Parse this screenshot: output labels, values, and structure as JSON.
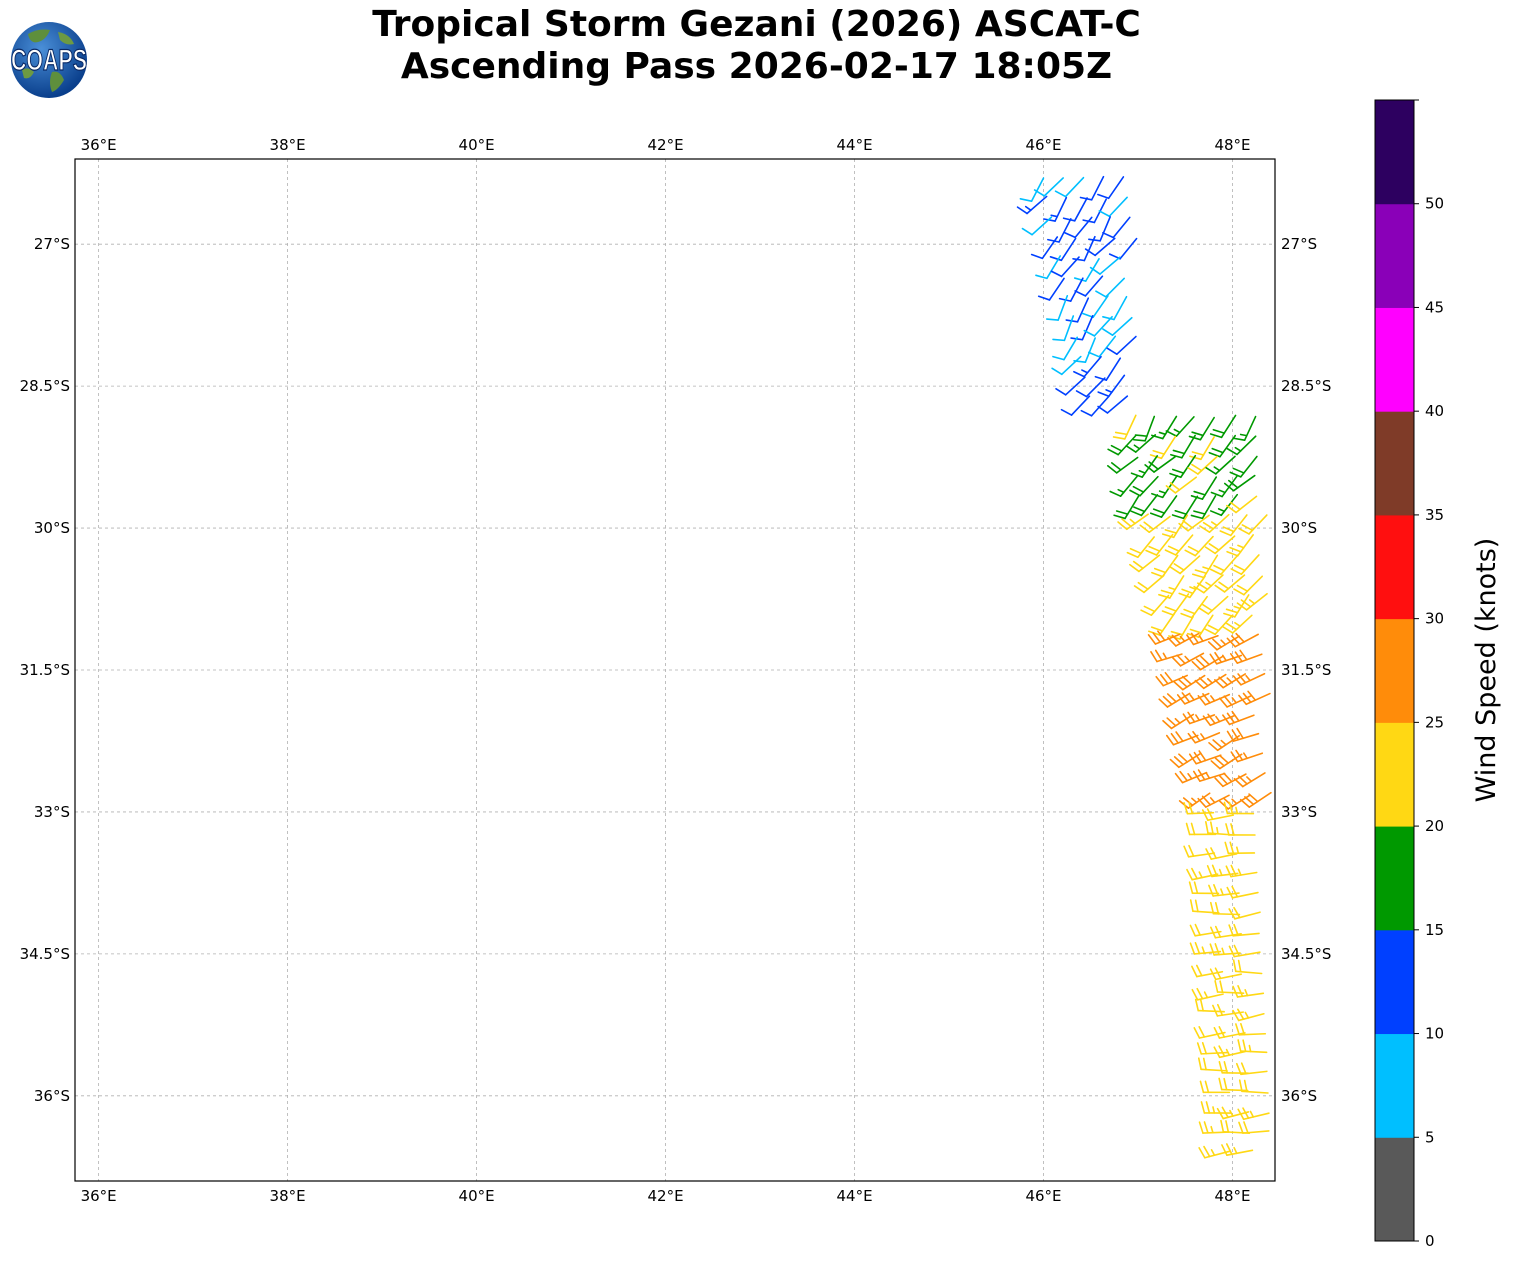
{
  "title": {
    "line1": "Tropical Storm Gezani (2026) ASCAT-C",
    "line2": "Ascending Pass 2026-02-17 18:05Z"
  },
  "logo": {
    "text": "COAPS",
    "icon": "globe-logo-icon"
  },
  "map": {
    "lon_range": [
      35.75,
      48.45
    ],
    "lat_range": [
      -26.1,
      -36.9
    ],
    "lon_ticks": [
      "36°E",
      "38°E",
      "40°E",
      "42°E",
      "44°E",
      "46°E",
      "48°E"
    ],
    "lon_tick_values": [
      36,
      38,
      40,
      42,
      44,
      46,
      48
    ],
    "lat_ticks": [
      "27°S",
      "28.5°S",
      "30°S",
      "31.5°S",
      "33°S",
      "34.5°S",
      "36°S"
    ],
    "lat_tick_values": [
      -27,
      -28.5,
      -30,
      -31.5,
      -33,
      -34.5,
      -36
    ],
    "grid": true,
    "grid_style": "dashed",
    "data_type": "wind barbs (ASCAT-C scatterometer swath)"
  },
  "colorbar": {
    "label": "Wind Speed (knots)",
    "ticks": [
      "0",
      "5",
      "10",
      "15",
      "20",
      "25",
      "30",
      "35",
      "40",
      "45",
      "50"
    ],
    "bins": [
      {
        "min": 0,
        "max": 5,
        "color": "#595959"
      },
      {
        "min": 5,
        "max": 10,
        "color": "#00bfff"
      },
      {
        "min": 10,
        "max": 15,
        "color": "#0040ff"
      },
      {
        "min": 15,
        "max": 20,
        "color": "#009900"
      },
      {
        "min": 20,
        "max": 25,
        "color": "#ffd814"
      },
      {
        "min": 25,
        "max": 30,
        "color": "#ff8c0a"
      },
      {
        "min": 30,
        "max": 35,
        "color": "#ff0f0f"
      },
      {
        "min": 35,
        "max": 40,
        "color": "#7f3b28"
      },
      {
        "min": 40,
        "max": 45,
        "color": "#ff00ff"
      },
      {
        "min": 45,
        "max": 50,
        "color": "#8a00b8"
      },
      {
        "min": 50,
        "max": 55,
        "color": "#2d0060"
      }
    ]
  },
  "wind_regions": [
    {
      "name": "light-winds-northwest",
      "lat": [
        -26.3,
        -28.7
      ],
      "lon_west_edge": [
        46.0,
        46.5
      ],
      "lon_east": 47.0,
      "speeds_kt": [
        8,
        13
      ]
    },
    {
      "name": "core-northeast",
      "lat": [
        -26.3,
        -29.8
      ],
      "lon_west_edge": [
        46.9,
        47.0
      ],
      "lon_east": 48.4,
      "speeds_kt": [
        16,
        22
      ]
    },
    {
      "name": "moderate-middle",
      "lat": [
        -29.0,
        -31.0
      ],
      "lon_west_edge": [
        46.9,
        47.4
      ],
      "lon_east": 48.4,
      "speeds_kt": [
        20,
        24
      ]
    },
    {
      "name": "strong-band",
      "lat": [
        -31.0,
        -33.0
      ],
      "lon_west_edge": [
        47.4,
        47.8
      ],
      "lon_east": 48.4,
      "speeds_kt": [
        25,
        29
      ]
    },
    {
      "name": "moderate-south",
      "lat": [
        -33.0,
        -36.8
      ],
      "lon_west_edge": [
        47.8,
        48.0
      ],
      "lon_east": 48.4,
      "speeds_kt": [
        20,
        24
      ]
    }
  ]
}
